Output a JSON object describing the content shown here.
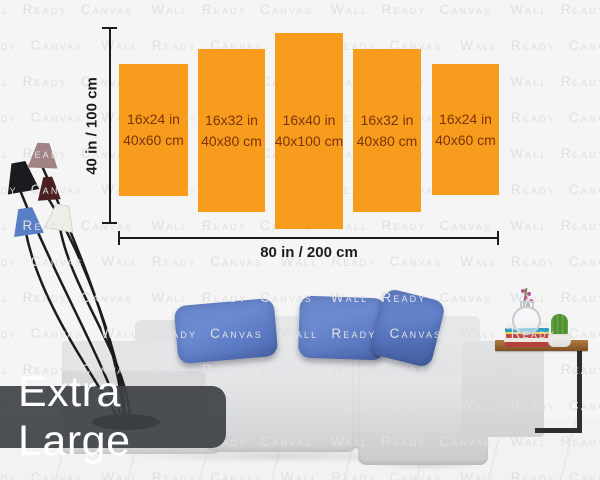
{
  "watermark": {
    "text": "Wall Ready Canvas"
  },
  "size_label": "Extra Large",
  "dimension": {
    "height": "40 in / 100 cm",
    "width": "80 in / 200 cm"
  },
  "panels": [
    {
      "in": "16x24 in",
      "cm": "40x60 cm"
    },
    {
      "in": "16x32 in",
      "cm": "40x80 cm"
    },
    {
      "in": "16x40 in",
      "cm": "40x100 cm"
    },
    {
      "in": "16x32 in",
      "cm": "40x80 cm"
    },
    {
      "in": "16x24 in",
      "cm": "40x60 cm"
    }
  ],
  "colors": {
    "panel_orange": "#F89C1E",
    "panel_text": "#7D3400",
    "pillow_blue": "#5B7AC3",
    "label_bg": "#3E4247",
    "label_text": "#FFFFFF",
    "dimension_line": "#1C1C1C",
    "watermark_gray": "#E0E0E3",
    "wood_brown": "#B07C42"
  }
}
